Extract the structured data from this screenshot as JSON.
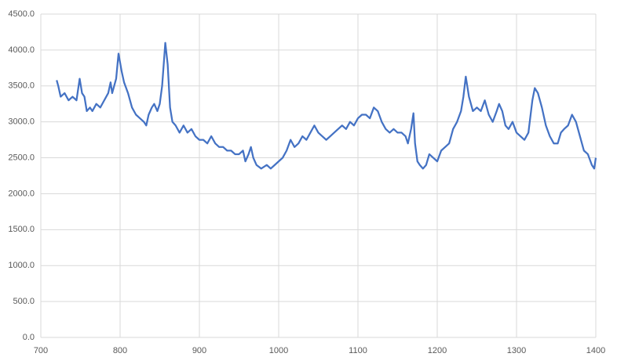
{
  "chart_data": {
    "type": "line",
    "x": [
      720,
      722,
      725,
      730,
      735,
      740,
      745,
      749,
      752,
      755,
      758,
      762,
      765,
      770,
      775,
      780,
      785,
      788,
      790,
      795,
      798,
      802,
      805,
      810,
      815,
      820,
      825,
      830,
      833,
      836,
      840,
      843,
      847,
      850,
      853,
      857,
      860,
      863,
      866,
      870,
      875,
      880,
      885,
      890,
      895,
      900,
      905,
      910,
      915,
      920,
      925,
      930,
      935,
      940,
      945,
      950,
      955,
      958,
      962,
      965,
      968,
      972,
      978,
      985,
      990,
      995,
      1000,
      1005,
      1010,
      1015,
      1020,
      1025,
      1030,
      1035,
      1040,
      1045,
      1050,
      1055,
      1060,
      1065,
      1070,
      1075,
      1080,
      1085,
      1090,
      1095,
      1100,
      1105,
      1110,
      1115,
      1120,
      1125,
      1130,
      1135,
      1140,
      1145,
      1150,
      1155,
      1160,
      1163,
      1167,
      1170,
      1172,
      1175,
      1178,
      1182,
      1186,
      1190,
      1195,
      1200,
      1205,
      1210,
      1215,
      1220,
      1225,
      1230,
      1233,
      1236,
      1240,
      1245,
      1250,
      1255,
      1260,
      1265,
      1270,
      1275,
      1278,
      1282,
      1286,
      1290,
      1295,
      1300,
      1305,
      1310,
      1315,
      1320,
      1323,
      1327,
      1332,
      1337,
      1342,
      1347,
      1352,
      1356,
      1360,
      1365,
      1370,
      1375,
      1380,
      1385,
      1390,
      1395,
      1398,
      1400
    ],
    "series": [
      {
        "color": "#4472c4",
        "values": [
          3580,
          3500,
          3350,
          3400,
          3300,
          3350,
          3300,
          3600,
          3400,
          3350,
          3150,
          3200,
          3150,
          3250,
          3200,
          3300,
          3400,
          3550,
          3400,
          3600,
          3950,
          3700,
          3550,
          3400,
          3200,
          3100,
          3050,
          3000,
          2950,
          3100,
          3200,
          3250,
          3150,
          3250,
          3500,
          4100,
          3800,
          3200,
          3000,
          2950,
          2850,
          2950,
          2850,
          2900,
          2800,
          2750,
          2750,
          2700,
          2800,
          2700,
          2650,
          2650,
          2600,
          2600,
          2550,
          2550,
          2600,
          2450,
          2550,
          2650,
          2500,
          2400,
          2350,
          2400,
          2350,
          2400,
          2450,
          2500,
          2600,
          2750,
          2650,
          2700,
          2800,
          2750,
          2850,
          2950,
          2850,
          2800,
          2750,
          2800,
          2850,
          2900,
          2950,
          2900,
          3000,
          2950,
          3050,
          3100,
          3100,
          3050,
          3200,
          3150,
          3000,
          2900,
          2850,
          2900,
          2850,
          2850,
          2800,
          2700,
          2900,
          3120,
          2700,
          2450,
          2400,
          2350,
          2400,
          2550,
          2500,
          2450,
          2600,
          2650,
          2700,
          2900,
          3000,
          3150,
          3350,
          3630,
          3350,
          3150,
          3200,
          3150,
          3300,
          3100,
          3000,
          3150,
          3250,
          3150,
          2950,
          2900,
          3000,
          2850,
          2800,
          2750,
          2850,
          3300,
          3470,
          3400,
          3200,
          2950,
          2800,
          2700,
          2700,
          2850,
          2900,
          2950,
          3100,
          3000,
          2800,
          2600,
          2550,
          2400,
          2350,
          2500
        ]
      }
    ],
    "xlim": [
      700,
      1400
    ],
    "xticks": [
      700,
      800,
      900,
      1000,
      1100,
      1200,
      1300,
      1400
    ],
    "ylim": [
      0,
      4500
    ],
    "yticks": [
      {
        "value": 0,
        "label": "0.0"
      },
      {
        "value": 500,
        "label": "500.0"
      },
      {
        "value": 1000,
        "label": "1000.0"
      },
      {
        "value": 1500,
        "label": "1500.0"
      },
      {
        "value": 2000,
        "label": "2000.0"
      },
      {
        "value": 2500,
        "label": "2500.0"
      },
      {
        "value": 3000,
        "label": "3000.0"
      },
      {
        "value": 3500,
        "label": "3500.0"
      },
      {
        "value": 4000,
        "label": "4000.0"
      },
      {
        "value": 4500,
        "label": "4500.0"
      }
    ],
    "grid": true
  }
}
